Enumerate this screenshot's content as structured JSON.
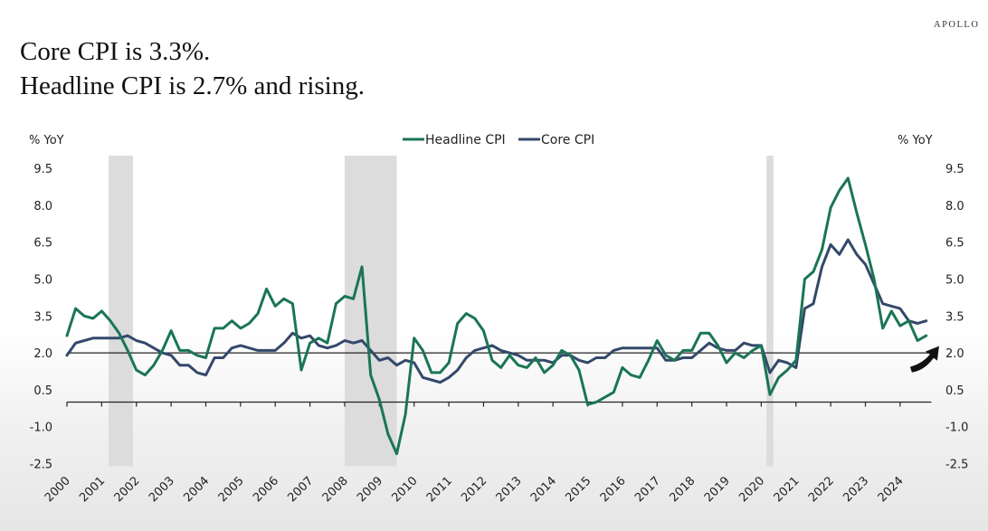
{
  "header": {
    "title_line1": "Core CPI is 3.3%.",
    "title_line2": "Headline CPI is 2.7% and rising.",
    "brand": "APOLLO"
  },
  "colors": {
    "headline": "#1a7556",
    "core": "#34486b",
    "recession": "#dcdcdc",
    "reference_line": "#222222",
    "arrow": "#111111"
  },
  "chart_data": {
    "type": "line",
    "title": "Core CPI is 3.3%. Headline CPI is 2.7% and rising.",
    "ylabel_left": "% YoY",
    "ylabel_right": "% YoY",
    "xlabel": "",
    "ylim": [
      -2.5,
      9.5
    ],
    "yticks": [
      "9.5",
      "8.0",
      "6.5",
      "5.0",
      "3.5",
      "2.0",
      "0.5",
      "-1.0",
      "-2.5"
    ],
    "ytick_values": [
      9.5,
      8.0,
      6.5,
      5.0,
      3.5,
      2.0,
      0.5,
      -1.0,
      -2.5
    ],
    "xlim": [
      2000,
      2024.9
    ],
    "xticks": [
      "2000",
      "2001",
      "2002",
      "2003",
      "2004",
      "2005",
      "2006",
      "2007",
      "2008",
      "2009",
      "2010",
      "2011",
      "2012",
      "2013",
      "2014",
      "2015",
      "2016",
      "2017",
      "2018",
      "2019",
      "2020",
      "2021",
      "2022",
      "2023",
      "2024"
    ],
    "legend": [
      "Headline CPI",
      "Core CPI"
    ],
    "legend_position": "top-center",
    "reference_line": 2.0,
    "zero_axis": 0,
    "grid": false,
    "recessions": [
      [
        2001.2,
        2001.9
      ],
      [
        2008.0,
        2009.5
      ],
      [
        2020.15,
        2020.35
      ]
    ],
    "annotation": "up-arrow at end of Headline CPI series",
    "x": [
      2000.0,
      2000.25,
      2000.5,
      2000.75,
      2001.0,
      2001.25,
      2001.5,
      2001.75,
      2002.0,
      2002.25,
      2002.5,
      2002.75,
      2003.0,
      2003.25,
      2003.5,
      2003.75,
      2004.0,
      2004.25,
      2004.5,
      2004.75,
      2005.0,
      2005.25,
      2005.5,
      2005.75,
      2006.0,
      2006.25,
      2006.5,
      2006.75,
      2007.0,
      2007.25,
      2007.5,
      2007.75,
      2008.0,
      2008.25,
      2008.5,
      2008.75,
      2009.0,
      2009.25,
      2009.5,
      2009.75,
      2010.0,
      2010.25,
      2010.5,
      2010.75,
      2011.0,
      2011.25,
      2011.5,
      2011.75,
      2012.0,
      2012.25,
      2012.5,
      2012.75,
      2013.0,
      2013.25,
      2013.5,
      2013.75,
      2014.0,
      2014.25,
      2014.5,
      2014.75,
      2015.0,
      2015.25,
      2015.5,
      2015.75,
      2016.0,
      2016.25,
      2016.5,
      2016.75,
      2017.0,
      2017.25,
      2017.5,
      2017.75,
      2018.0,
      2018.25,
      2018.5,
      2018.75,
      2019.0,
      2019.25,
      2019.5,
      2019.75,
      2020.0,
      2020.25,
      2020.5,
      2020.75,
      2021.0,
      2021.25,
      2021.5,
      2021.75,
      2022.0,
      2022.25,
      2022.5,
      2022.75,
      2023.0,
      2023.25,
      2023.5,
      2023.75,
      2024.0,
      2024.25,
      2024.5,
      2024.75
    ],
    "series": [
      {
        "name": "Headline CPI",
        "values": [
          2.7,
          3.8,
          3.5,
          3.4,
          3.7,
          3.3,
          2.8,
          2.1,
          1.3,
          1.1,
          1.5,
          2.1,
          2.9,
          2.1,
          2.1,
          1.9,
          1.8,
          3.0,
          3.0,
          3.3,
          3.0,
          3.2,
          3.6,
          4.6,
          3.9,
          4.2,
          4.0,
          1.3,
          2.4,
          2.6,
          2.4,
          4.0,
          4.3,
          4.2,
          5.5,
          1.1,
          0.1,
          -1.3,
          -2.1,
          -0.5,
          2.6,
          2.1,
          1.2,
          1.2,
          1.6,
          3.2,
          3.6,
          3.4,
          2.9,
          1.7,
          1.4,
          1.9,
          1.5,
          1.4,
          1.8,
          1.2,
          1.5,
          2.1,
          1.9,
          1.3,
          -0.1,
          0.0,
          0.2,
          0.4,
          1.4,
          1.1,
          1.0,
          1.7,
          2.5,
          1.9,
          1.7,
          2.1,
          2.1,
          2.8,
          2.8,
          2.3,
          1.6,
          2.0,
          1.8,
          2.1,
          2.3,
          0.3,
          1.0,
          1.3,
          1.7,
          5.0,
          5.3,
          6.2,
          7.9,
          8.6,
          9.1,
          7.7,
          6.4,
          5.0,
          3.0,
          3.7,
          3.1,
          3.3,
          2.5,
          2.7
        ]
      },
      {
        "name": "Core CPI",
        "values": [
          1.9,
          2.4,
          2.5,
          2.6,
          2.6,
          2.6,
          2.6,
          2.7,
          2.5,
          2.4,
          2.2,
          2.0,
          1.9,
          1.5,
          1.5,
          1.2,
          1.1,
          1.8,
          1.8,
          2.2,
          2.3,
          2.2,
          2.1,
          2.1,
          2.1,
          2.4,
          2.8,
          2.6,
          2.7,
          2.3,
          2.2,
          2.3,
          2.5,
          2.4,
          2.5,
          2.1,
          1.7,
          1.8,
          1.5,
          1.7,
          1.6,
          1.0,
          0.9,
          0.8,
          1.0,
          1.3,
          1.8,
          2.1,
          2.2,
          2.3,
          2.1,
          2.0,
          1.9,
          1.7,
          1.7,
          1.7,
          1.6,
          1.9,
          1.9,
          1.7,
          1.6,
          1.8,
          1.8,
          2.1,
          2.2,
          2.2,
          2.2,
          2.2,
          2.2,
          1.7,
          1.7,
          1.8,
          1.8,
          2.1,
          2.4,
          2.2,
          2.1,
          2.1,
          2.4,
          2.3,
          2.3,
          1.2,
          1.7,
          1.6,
          1.4,
          3.8,
          4.0,
          5.5,
          6.4,
          6.0,
          6.6,
          6.0,
          5.6,
          4.8,
          4.0,
          3.9,
          3.8,
          3.3,
          3.2,
          3.3
        ]
      }
    ]
  }
}
